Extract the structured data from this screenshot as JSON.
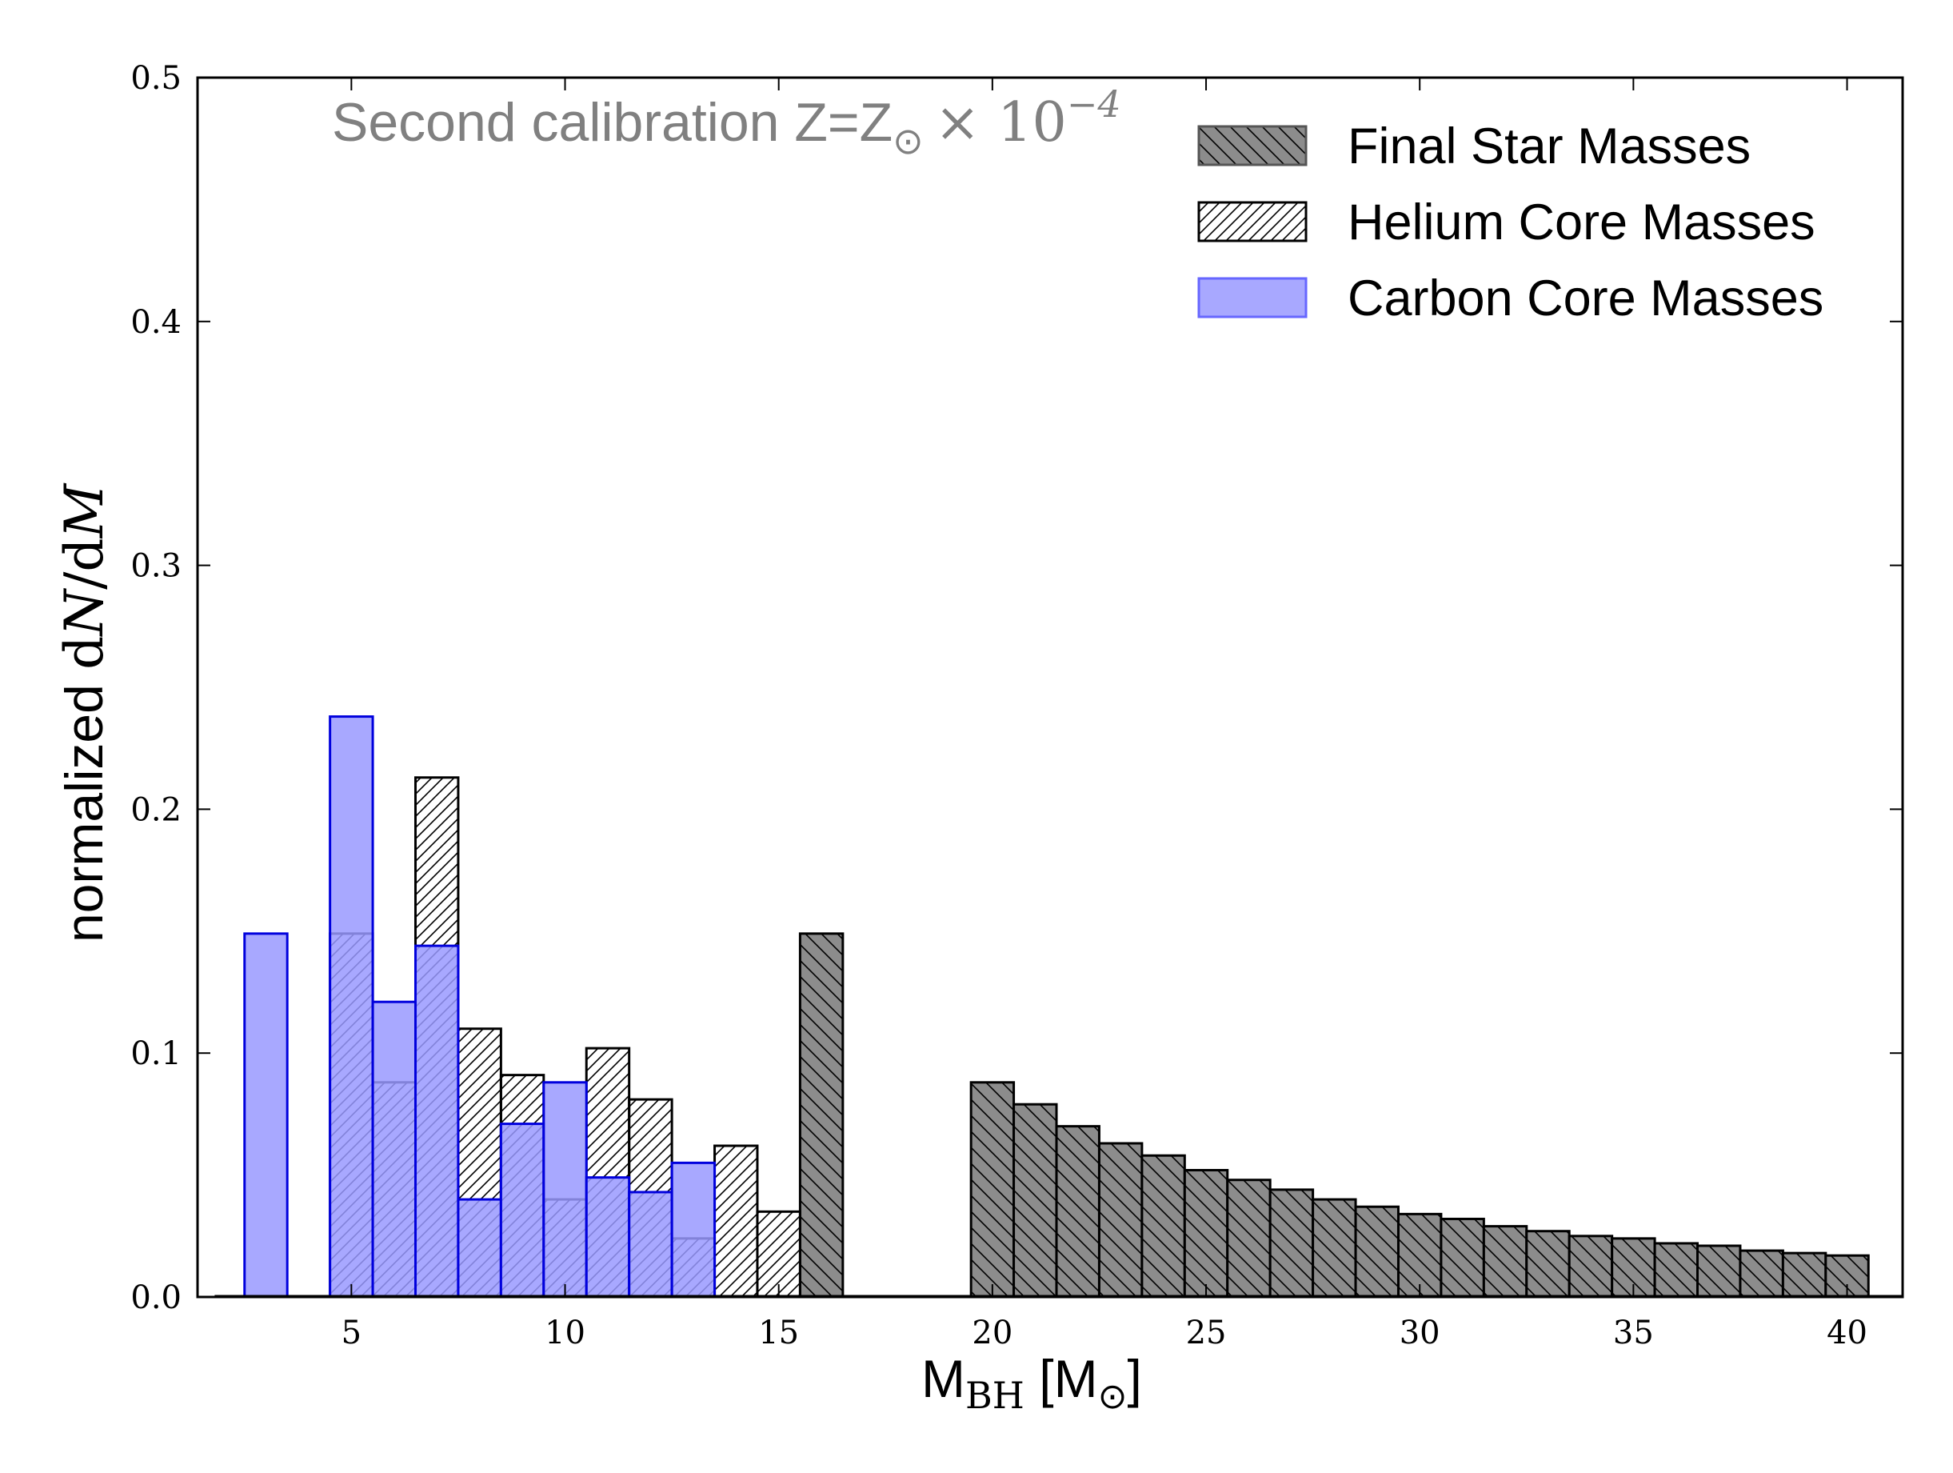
{
  "chart_data": {
    "type": "bar",
    "annotation": {
      "prefix": "Second calibration Z=Z",
      "sub": "⊙",
      "times": "× 10",
      "exp": "−4"
    },
    "xlabel": {
      "main": "M",
      "sub1": "BH",
      "mid": " [M",
      "sub2": "⊙",
      "end": "]"
    },
    "ylabel": {
      "prefix": "normalized ",
      "d1": "d",
      "N": "N",
      "slash": "/d",
      "M": "M"
    },
    "xlim": [
      1.4,
      41.3
    ],
    "ylim": [
      0,
      0.5
    ],
    "xticks": [
      5,
      10,
      15,
      20,
      25,
      30,
      35,
      40
    ],
    "xtick_labels": [
      "5",
      "10",
      "15",
      "20",
      "25",
      "30",
      "35",
      "40"
    ],
    "yticks": [
      0.0,
      0.1,
      0.2,
      0.3,
      0.4,
      0.5
    ],
    "ytick_labels": [
      "0.0",
      "0.1",
      "0.2",
      "0.3",
      "0.4",
      "0.5"
    ],
    "bin_width": 1,
    "legend_position": "top-right",
    "colors": {
      "final": "#8c8c8c",
      "helium_fill": "#ffffff",
      "carbon_fill": "#9999ff",
      "carbon_edge": "#0000dd",
      "edge": "#000000"
    },
    "series": [
      {
        "name": "Final Star Masses",
        "style": "final",
        "bins": [
          {
            "x": 16,
            "y": 0.149
          },
          {
            "x": 20,
            "y": 0.088
          },
          {
            "x": 21,
            "y": 0.079
          },
          {
            "x": 22,
            "y": 0.07
          },
          {
            "x": 23,
            "y": 0.063
          },
          {
            "x": 24,
            "y": 0.058
          },
          {
            "x": 25,
            "y": 0.052
          },
          {
            "x": 26,
            "y": 0.048
          },
          {
            "x": 27,
            "y": 0.044
          },
          {
            "x": 28,
            "y": 0.04
          },
          {
            "x": 29,
            "y": 0.037
          },
          {
            "x": 30,
            "y": 0.034
          },
          {
            "x": 31,
            "y": 0.032
          },
          {
            "x": 32,
            "y": 0.029
          },
          {
            "x": 33,
            "y": 0.027
          },
          {
            "x": 34,
            "y": 0.025
          },
          {
            "x": 35,
            "y": 0.024
          },
          {
            "x": 36,
            "y": 0.022
          },
          {
            "x": 37,
            "y": 0.021
          },
          {
            "x": 38,
            "y": 0.019
          },
          {
            "x": 39,
            "y": 0.018
          },
          {
            "x": 40,
            "y": 0.017
          }
        ]
      },
      {
        "name": "Helium Core Masses",
        "style": "helium",
        "bins": [
          {
            "x": 5,
            "y": 0.149
          },
          {
            "x": 6,
            "y": 0.088
          },
          {
            "x": 7,
            "y": 0.213
          },
          {
            "x": 8,
            "y": 0.11
          },
          {
            "x": 9,
            "y": 0.091
          },
          {
            "x": 10,
            "y": 0.04
          },
          {
            "x": 11,
            "y": 0.102
          },
          {
            "x": 12,
            "y": 0.081
          },
          {
            "x": 13,
            "y": 0.024
          },
          {
            "x": 14,
            "y": 0.062
          },
          {
            "x": 15,
            "y": 0.035
          }
        ]
      },
      {
        "name": "Carbon Core Masses",
        "style": "carbon",
        "bins": [
          {
            "x": 3,
            "y": 0.149
          },
          {
            "x": 5,
            "y": 0.238
          },
          {
            "x": 6,
            "y": 0.121
          },
          {
            "x": 7,
            "y": 0.144
          },
          {
            "x": 8,
            "y": 0.04
          },
          {
            "x": 9,
            "y": 0.071
          },
          {
            "x": 10,
            "y": 0.088
          },
          {
            "x": 11,
            "y": 0.049
          },
          {
            "x": 12,
            "y": 0.043
          },
          {
            "x": 13,
            "y": 0.055
          }
        ]
      }
    ]
  }
}
